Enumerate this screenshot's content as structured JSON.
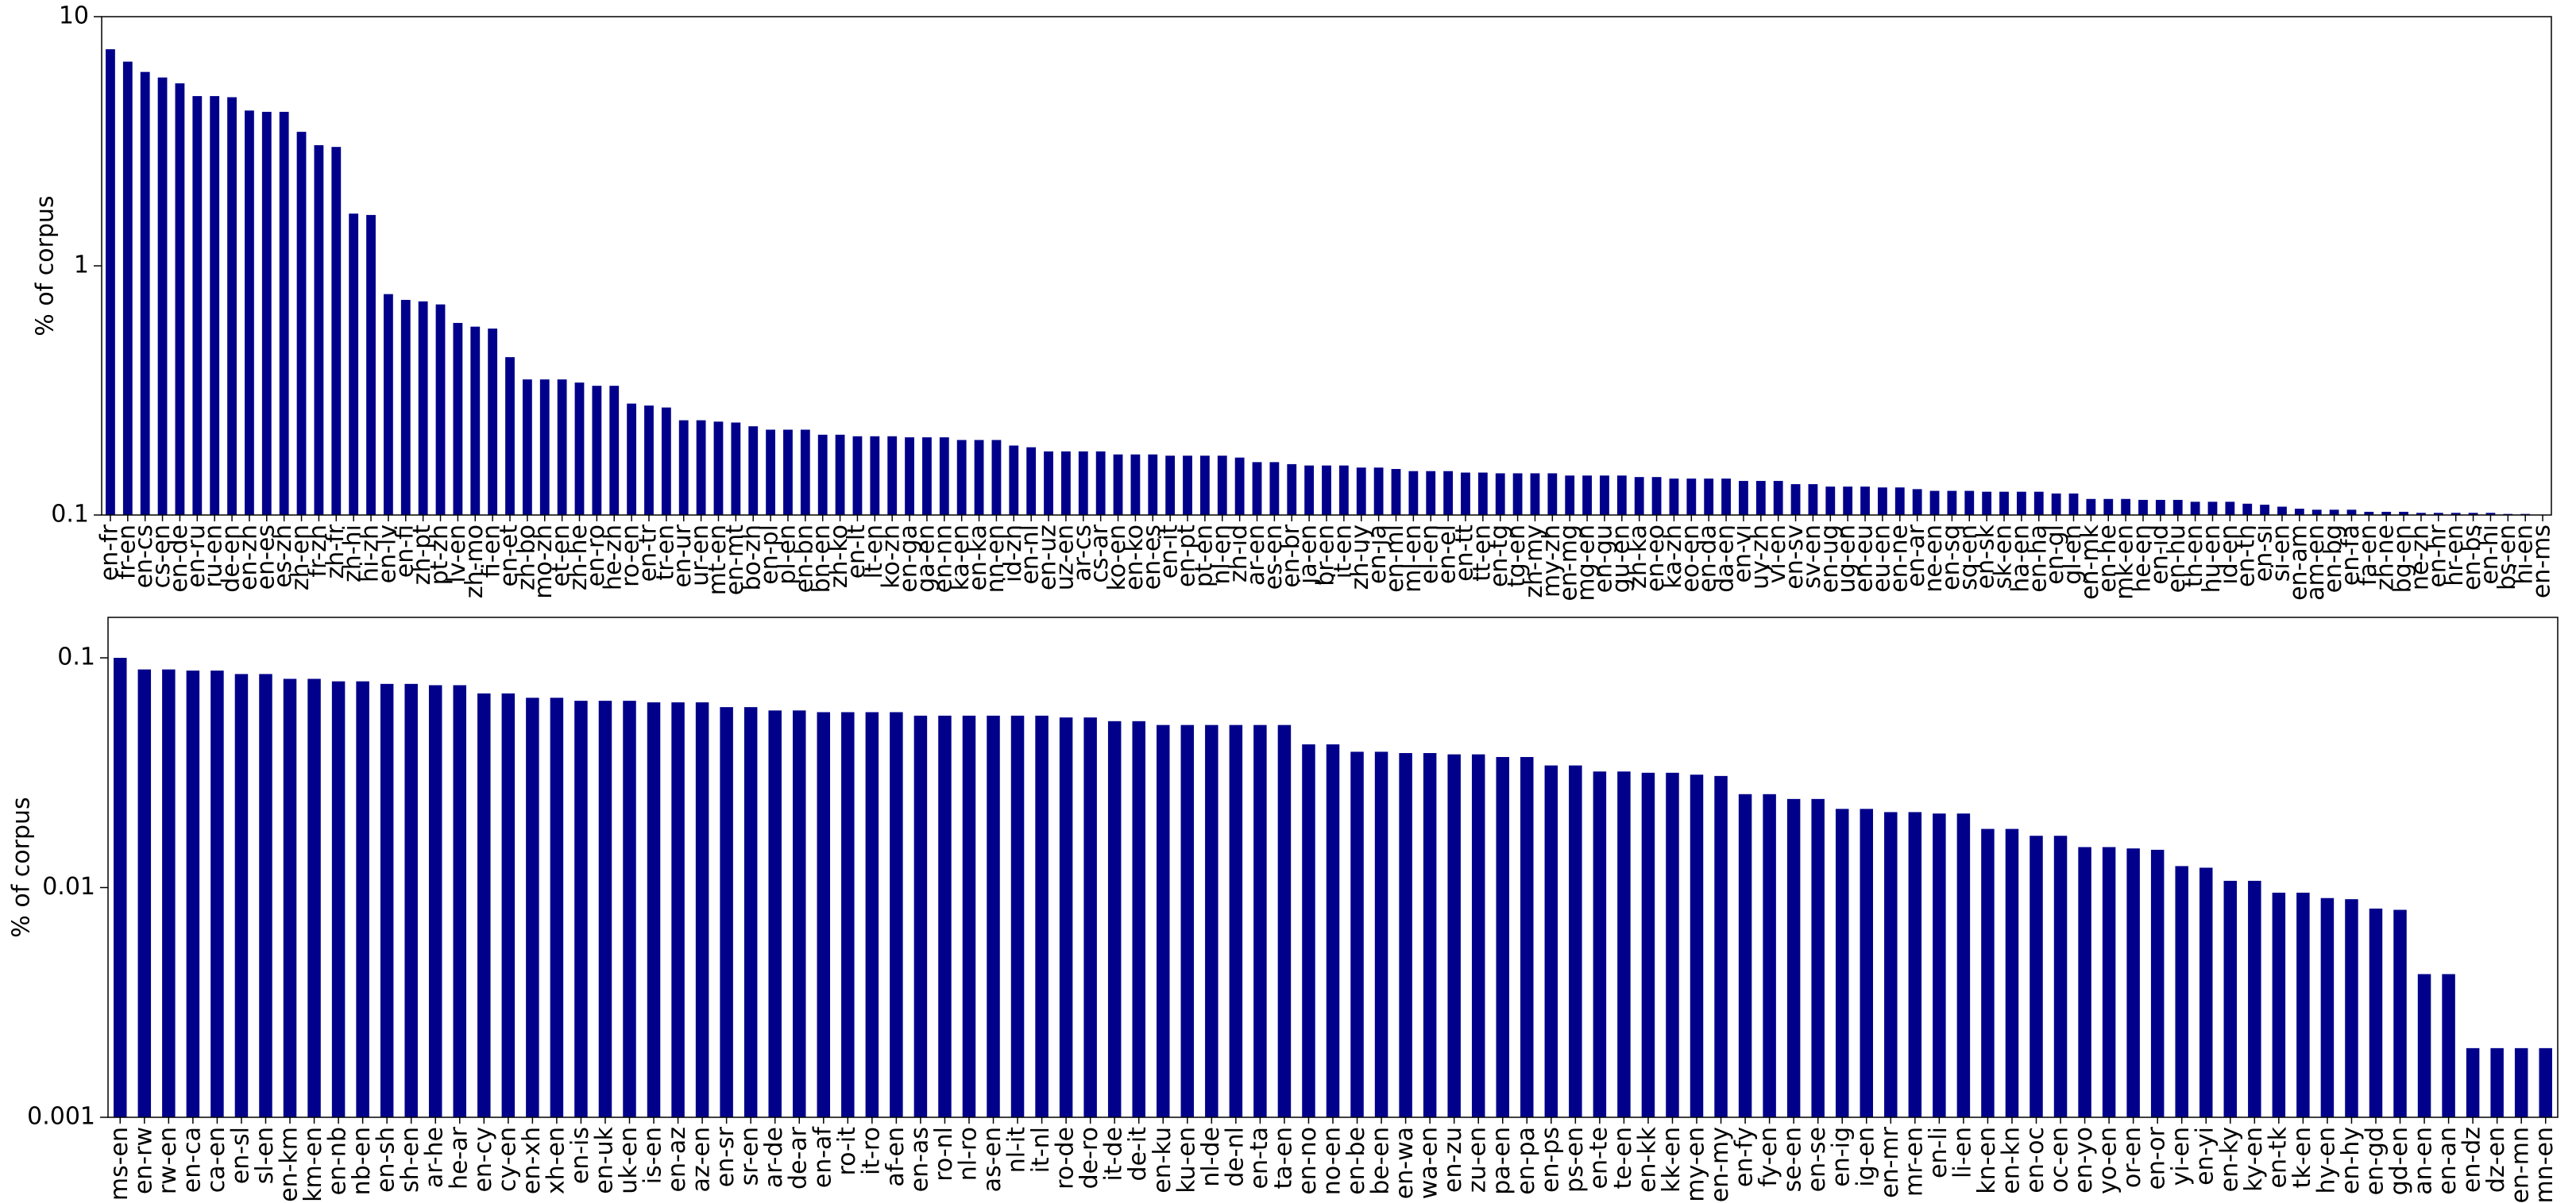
{
  "chart_data": [
    {
      "type": "bar",
      "ylabel": "% of corpus",
      "log_scale": true,
      "color": "#00008b",
      "ylim": [
        0.1,
        10
      ],
      "yticks": [
        0.1,
        1,
        10
      ],
      "categories": [
        "en-fr",
        "fr-en",
        "en-cs",
        "cs-en",
        "en-de",
        "en-ru",
        "ru-en",
        "de-en",
        "en-zh",
        "en-es",
        "es-zh",
        "zh-en",
        "fr-zh",
        "zh-fr",
        "zh-hi",
        "hi-zh",
        "en-lv",
        "en-fi",
        "zh-pt",
        "pt-zh",
        "lv-en",
        "zh-mo",
        "fi-en",
        "en-et",
        "zh-bo",
        "mo-zh",
        "et-en",
        "zh-he",
        "en-ro",
        "he-zh",
        "ro-en",
        "en-tr",
        "tr-en",
        "en-ur",
        "ur-en",
        "mt-en",
        "en-mt",
        "bo-zh",
        "en-pl",
        "pl-en",
        "en-bn",
        "bn-en",
        "zh-ko",
        "en-lt",
        "lt-en",
        "ko-zh",
        "en-ga",
        "ga-en",
        "en-nn",
        "ka-en",
        "en-ka",
        "nn-en",
        "id-zh",
        "en-nl",
        "en-uz",
        "uz-en",
        "ar-cs",
        "cs-ar",
        "ko-en",
        "en-ko",
        "en-es",
        "en-it",
        "en-pt",
        "pt-en",
        "nl-en",
        "zh-id",
        "ar-en",
        "es-en",
        "en-br",
        "ja-en",
        "br-en",
        "it-en",
        "zh-uy",
        "en-ja",
        "en-ml",
        "ml-en",
        "el-en",
        "en-el",
        "en-tt",
        "tt-en",
        "en-tg",
        "tg-en",
        "zh-my",
        "my-zh",
        "en-mg",
        "mg-en",
        "en-gu",
        "gu-en",
        "zh-ka",
        "en-eo",
        "ka-zh",
        "eo-en",
        "en-da",
        "da-en",
        "en-vi",
        "uy-zh",
        "vi-en",
        "en-sv",
        "sv-en",
        "en-ug",
        "ug-en",
        "en-eu",
        "eu-en",
        "en-ne",
        "en-ar",
        "ne-en",
        "en-sq",
        "sq-en",
        "en-sk",
        "sk-en",
        "ha-en",
        "en-ha",
        "en-gl",
        "gl-en",
        "en-mk",
        "en-he",
        "mk-en",
        "he-en",
        "en-id",
        "en-hu",
        "th-en",
        "hu-en",
        "id-en",
        "en-th",
        "en-si",
        "si-en",
        "en-am",
        "am-en",
        "en-bg",
        "en-fa",
        "fa-en",
        "zh-ne",
        "bg-en",
        "ne-zh",
        "en-hr",
        "hr-en",
        "en-bs",
        "en-hi",
        "bs-en",
        "hi-en",
        "en-ms"
      ],
      "values": [
        7.4,
        6.6,
        6.0,
        5.7,
        5.4,
        4.8,
        4.8,
        4.75,
        4.2,
        4.15,
        4.15,
        3.45,
        3.05,
        3.0,
        1.62,
        1.6,
        0.77,
        0.73,
        0.72,
        0.7,
        0.59,
        0.57,
        0.56,
        0.43,
        0.35,
        0.35,
        0.35,
        0.34,
        0.33,
        0.33,
        0.28,
        0.275,
        0.27,
        0.24,
        0.24,
        0.237,
        0.235,
        0.227,
        0.22,
        0.22,
        0.22,
        0.21,
        0.21,
        0.207,
        0.207,
        0.207,
        0.205,
        0.205,
        0.205,
        0.2,
        0.2,
        0.2,
        0.19,
        0.187,
        0.18,
        0.18,
        0.18,
        0.18,
        0.175,
        0.175,
        0.175,
        0.173,
        0.173,
        0.173,
        0.173,
        0.17,
        0.163,
        0.163,
        0.16,
        0.158,
        0.158,
        0.158,
        0.155,
        0.155,
        0.153,
        0.15,
        0.15,
        0.15,
        0.148,
        0.148,
        0.147,
        0.147,
        0.147,
        0.147,
        0.144,
        0.144,
        0.144,
        0.144,
        0.142,
        0.142,
        0.14,
        0.14,
        0.14,
        0.14,
        0.137,
        0.137,
        0.137,
        0.133,
        0.133,
        0.13,
        0.13,
        0.13,
        0.129,
        0.129,
        0.127,
        0.125,
        0.125,
        0.125,
        0.124,
        0.124,
        0.124,
        0.124,
        0.122,
        0.122,
        0.116,
        0.116,
        0.116,
        0.115,
        0.115,
        0.115,
        0.113,
        0.113,
        0.113,
        0.111,
        0.11,
        0.108,
        0.106,
        0.105,
        0.105,
        0.105,
        0.103,
        0.103,
        0.103,
        0.102,
        0.102,
        0.102,
        0.102,
        0.102,
        0.101,
        0.101,
        0.1
      ]
    },
    {
      "type": "bar",
      "ylabel": "% of corpus",
      "log_scale": true,
      "color": "#00008b",
      "ylim": [
        0.001,
        0.15
      ],
      "yticks": [
        0.001,
        0.01,
        0.1
      ],
      "categories": [
        "ms-en",
        "en-rw",
        "rw-en",
        "en-ca",
        "ca-en",
        "en-sl",
        "sl-en",
        "en-km",
        "km-en",
        "en-nb",
        "nb-en",
        "en-sh",
        "sh-en",
        "ar-he",
        "he-ar",
        "en-cy",
        "cy-en",
        "en-xh",
        "xh-en",
        "en-is",
        "en-uk",
        "uk-en",
        "is-en",
        "en-az",
        "az-en",
        "en-sr",
        "sr-en",
        "ar-de",
        "de-ar",
        "en-af",
        "ro-it",
        "it-ro",
        "af-en",
        "en-as",
        "ro-nl",
        "nl-ro",
        "as-en",
        "nl-it",
        "it-nl",
        "ro-de",
        "de-ro",
        "it-de",
        "de-it",
        "en-ku",
        "ku-en",
        "nl-de",
        "de-nl",
        "en-ta",
        "ta-en",
        "en-no",
        "no-en",
        "en-be",
        "be-en",
        "en-wa",
        "wa-en",
        "en-zu",
        "zu-en",
        "pa-en",
        "en-pa",
        "en-ps",
        "ps-en",
        "en-te",
        "te-en",
        "en-kk",
        "kk-en",
        "my-en",
        "en-my",
        "en-fy",
        "fy-en",
        "se-en",
        "en-se",
        "en-ig",
        "ig-en",
        "en-mr",
        "mr-en",
        "en-li",
        "li-en",
        "kn-en",
        "en-kn",
        "en-oc",
        "oc-en",
        "en-yo",
        "yo-en",
        "or-en",
        "en-or",
        "yi-en",
        "en-yi",
        "en-ky",
        "ky-en",
        "en-tk",
        "tk-en",
        "hy-en",
        "en-hy",
        "en-gd",
        "gd-en",
        "an-en",
        "en-an",
        "en-dz",
        "dz-en",
        "en-mn",
        "mn-en"
      ],
      "values": [
        0.1,
        0.089,
        0.089,
        0.088,
        0.088,
        0.085,
        0.085,
        0.081,
        0.081,
        0.079,
        0.079,
        0.077,
        0.077,
        0.076,
        0.076,
        0.07,
        0.07,
        0.067,
        0.067,
        0.065,
        0.065,
        0.065,
        0.064,
        0.064,
        0.064,
        0.061,
        0.061,
        0.059,
        0.059,
        0.058,
        0.058,
        0.058,
        0.058,
        0.056,
        0.056,
        0.056,
        0.056,
        0.056,
        0.056,
        0.055,
        0.055,
        0.053,
        0.053,
        0.051,
        0.051,
        0.051,
        0.051,
        0.051,
        0.051,
        0.042,
        0.042,
        0.039,
        0.039,
        0.0385,
        0.0385,
        0.038,
        0.038,
        0.037,
        0.037,
        0.034,
        0.034,
        0.032,
        0.032,
        0.0316,
        0.0316,
        0.031,
        0.0306,
        0.0255,
        0.0255,
        0.0243,
        0.0243,
        0.022,
        0.022,
        0.0213,
        0.0213,
        0.021,
        0.021,
        0.018,
        0.018,
        0.0168,
        0.0168,
        0.015,
        0.015,
        0.0148,
        0.0146,
        0.0124,
        0.0122,
        0.0107,
        0.0107,
        0.0095,
        0.0095,
        0.009,
        0.0089,
        0.0081,
        0.008,
        0.0042,
        0.0042,
        0.002,
        0.002,
        0.002,
        0.002
      ]
    }
  ]
}
